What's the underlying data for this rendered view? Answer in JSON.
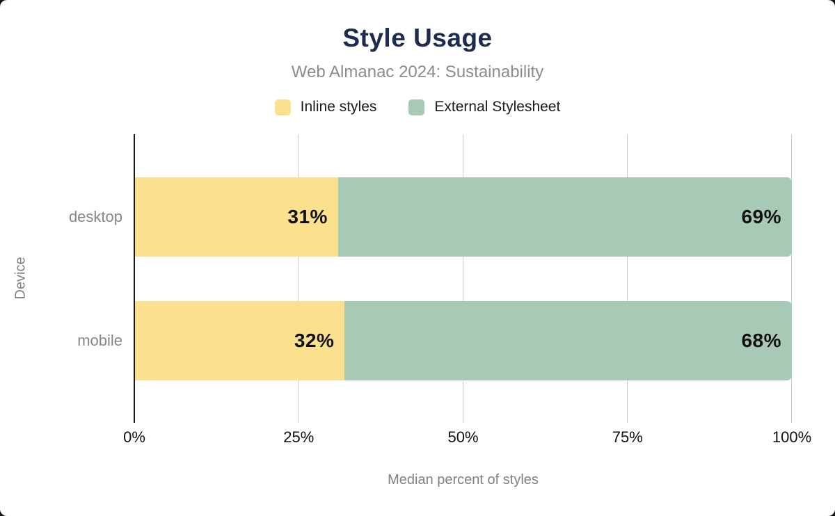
{
  "header": {
    "title": "Style Usage",
    "subtitle": "Web Almanac 2024: Sustainability"
  },
  "chart_data": {
    "type": "bar",
    "orientation": "horizontal",
    "stacked": true,
    "title": "Style Usage",
    "subtitle": "Web Almanac 2024: Sustainability",
    "categories": [
      "desktop",
      "mobile"
    ],
    "series": [
      {
        "name": "Inline styles",
        "color": "#fbe18e",
        "values": [
          31,
          32
        ]
      },
      {
        "name": "External Stylesheet",
        "color": "#a7c9b5",
        "values": [
          69,
          68
        ]
      }
    ],
    "data_labels": [
      [
        "31%",
        "69%"
      ],
      [
        "32%",
        "68%"
      ]
    ],
    "xlabel": "Median percent of styles",
    "ylabel": "Device",
    "xlim": [
      0,
      100
    ],
    "xticks": [
      0,
      25,
      50,
      75,
      100
    ],
    "xtick_labels": [
      "0%",
      "25%",
      "50%",
      "75%",
      "100%"
    ],
    "grid": "vertical",
    "legend_position": "top"
  },
  "colors": {
    "title": "#1e2b4f",
    "subtitle": "#8c8c8c",
    "axis_title": "#808080",
    "category_label": "#868686",
    "tick_label": "#111111",
    "data_label": "#111111",
    "gridline": "#cccccc",
    "axis_line": "#1a1a1a",
    "background": "#ffffff",
    "series_inline": "#fbe18e",
    "series_external": "#a7c9b5"
  }
}
